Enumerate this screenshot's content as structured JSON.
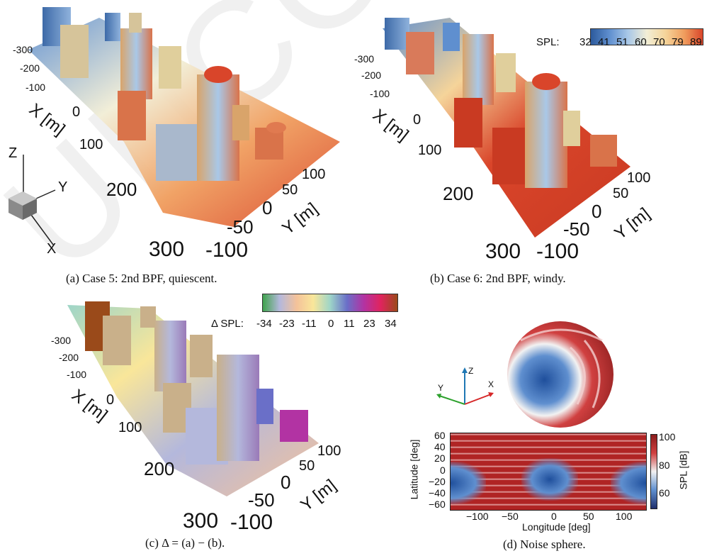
{
  "watermark": "UNCORRECTED",
  "colors": {
    "spl_scale": [
      "#2c5a9c",
      "#5f8fcf",
      "#a9c8e8",
      "#f2eed6",
      "#f5d49a",
      "#f09e5e",
      "#d9452a"
    ],
    "delta_scale": [
      "#3fa34d",
      "#b4b8dc",
      "#f4c29a",
      "#f9e69a",
      "#9ed5c8",
      "#6a6fc8",
      "#b233a3",
      "#e0245e",
      "#9a4a1a"
    ],
    "sphere_red": "#c62828",
    "sphere_blue": "#1f4f9c"
  },
  "panel_a": {
    "caption": "(a) Case 5: 2nd BPF, quiescent.",
    "x_label": "X [m]",
    "y_label": "Y [m]",
    "x_ticks": [
      "-300",
      "-200",
      "-100",
      "0",
      "100",
      "200",
      "300"
    ],
    "y_ticks": [
      "100",
      "50",
      "0",
      "-50",
      "-100"
    ]
  },
  "panel_b": {
    "caption": "(b) Case 6: 2nd BPF, windy.",
    "x_label": "X [m]",
    "y_label": "Y [m]",
    "x_ticks": [
      "-300",
      "-200",
      "-100",
      "0",
      "100",
      "200",
      "300"
    ],
    "y_ticks": [
      "100",
      "50",
      "0",
      "-50",
      "-100"
    ],
    "colorbar_label": "SPL:",
    "colorbar_ticks": [
      "32",
      "41",
      "51",
      "60",
      "70",
      "79",
      "89"
    ]
  },
  "panel_c": {
    "caption": "(c) Δ = (a) − (b).",
    "x_label": "X [m]",
    "y_label": "Y [m]",
    "x_ticks": [
      "-300",
      "-200",
      "-100",
      "0",
      "100",
      "200",
      "300"
    ],
    "y_ticks": [
      "100",
      "50",
      "0",
      "-50",
      "-100"
    ],
    "colorbar_label": "Δ SPL:",
    "colorbar_ticks": [
      "-34",
      "-23",
      "-11",
      "0",
      "11",
      "23",
      "34"
    ]
  },
  "panel_d": {
    "caption": "(d) Noise sphere.",
    "axis_z": "Z",
    "axis_y": "Y",
    "axis_x": "X",
    "lat_label": "Latitude [deg]",
    "lon_label": "Longitude [deg]",
    "lat_ticks": [
      "60",
      "40",
      "20",
      "0",
      "−20",
      "−40",
      "−60"
    ],
    "lon_ticks": [
      "−100",
      "−50",
      "0",
      "50",
      "100"
    ],
    "cb_label": "SPL [dB]",
    "cb_ticks": [
      "100",
      "80",
      "60"
    ]
  },
  "triad": {
    "z": "Z",
    "y": "Y",
    "x": "X"
  }
}
